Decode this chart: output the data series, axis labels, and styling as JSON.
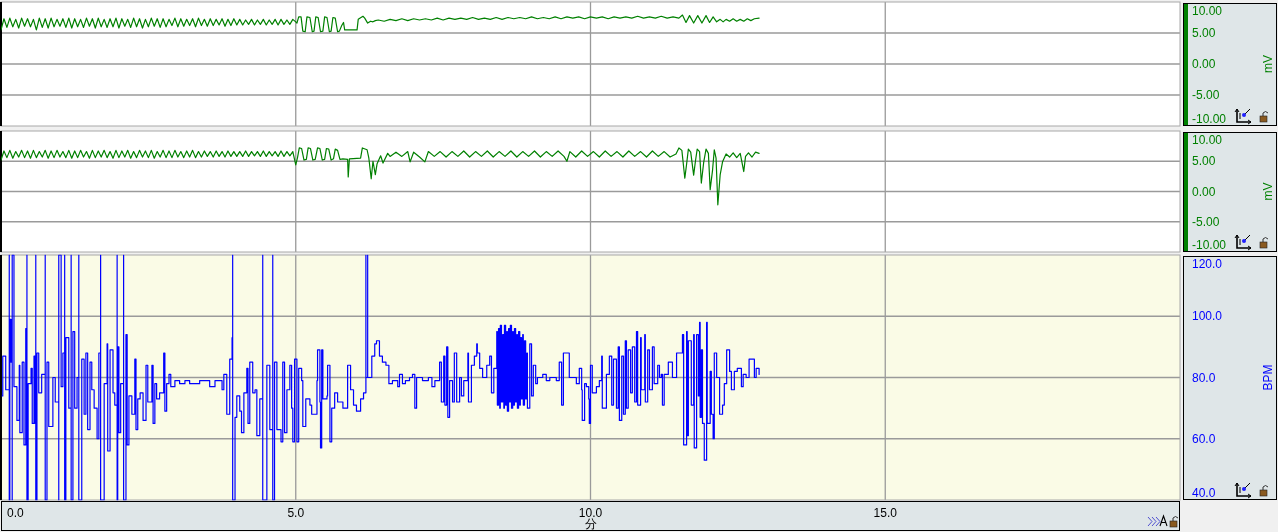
{
  "chart_data": [
    {
      "type": "line",
      "ylabel": "mV",
      "color": "#008000",
      "xlim": [
        0,
        20
      ],
      "ylim": [
        -10,
        10
      ],
      "grid": true,
      "tick_labels": "y",
      "xticks": [
        {
          "value": 0,
          "label": null
        },
        {
          "value": 5,
          "label": null
        },
        {
          "value": 10,
          "label": null
        },
        {
          "value": 15,
          "label": null
        }
      ],
      "yticks": [
        {
          "value": -10,
          "label": "-10.00"
        },
        {
          "value": -5,
          "label": "-5.00"
        },
        {
          "value": 0,
          "label": "0.00"
        },
        {
          "value": 5,
          "label": "5.00"
        },
        {
          "value": 10,
          "label": "10.00"
        }
      ],
      "x": [
        0,
        0.05,
        0.1,
        0.15,
        0.2,
        0.25,
        0.3,
        0.35,
        0.4,
        0.45,
        0.5,
        0.55,
        0.6,
        0.65,
        0.7,
        0.75,
        0.8,
        0.85,
        0.9,
        0.95,
        1,
        1.05,
        1.1,
        1.15,
        1.2,
        1.25,
        1.3,
        1.35,
        1.4,
        1.45,
        1.5,
        1.55,
        1.6,
        1.65,
        1.7,
        1.75,
        1.8,
        1.85,
        1.9,
        1.95,
        2,
        2.05,
        2.1,
        2.15,
        2.2,
        2.25,
        2.3,
        2.35,
        2.4,
        2.45,
        2.5,
        2.55,
        2.6,
        2.65,
        2.7,
        2.75,
        2.8,
        2.85,
        2.9,
        2.95,
        3,
        3.05,
        3.1,
        3.15,
        3.2,
        3.25,
        3.3,
        3.35,
        3.4,
        3.45,
        3.5,
        3.55,
        3.6,
        3.65,
        3.7,
        3.75,
        3.8,
        3.85,
        3.9,
        3.95,
        4,
        4.05,
        4.1,
        4.15,
        4.2,
        4.25,
        4.3,
        4.35,
        4.4,
        4.45,
        4.5,
        4.55,
        4.6,
        4.65,
        4.7,
        4.75,
        4.8,
        4.85,
        4.9,
        4.95,
        5,
        5.02,
        5.05,
        5.09,
        5.12,
        5.16,
        5.19,
        5.24,
        5.28,
        5.31,
        5.34,
        5.38,
        5.42,
        5.46,
        5.49,
        5.53,
        5.57,
        5.6,
        5.63,
        5.67,
        5.71,
        5.74,
        5.78,
        5.81,
        5.83,
        6.04,
        6.06,
        6.14,
        6.17,
        6.22,
        6.27,
        6.31,
        6.35,
        6.4,
        6.5,
        6.6,
        6.7,
        6.8,
        6.9,
        7,
        7.1,
        7.2,
        7.3,
        7.4,
        7.5,
        7.6,
        7.7,
        7.8,
        7.9,
        8,
        8.1,
        8.2,
        8.3,
        8.4,
        8.5,
        8.6,
        8.7,
        8.8,
        8.9,
        9,
        9.1,
        9.2,
        9.3,
        9.4,
        9.5,
        9.6,
        9.7,
        9.8,
        9.9,
        10,
        10.1,
        10.2,
        10.3,
        10.4,
        10.5,
        10.6,
        10.7,
        10.8,
        10.9,
        11,
        11.1,
        11.2,
        11.3,
        11.4,
        11.5,
        11.56,
        11.62,
        11.68,
        11.75,
        11.82,
        11.89,
        11.96,
        12.02,
        12.08,
        12.14,
        12.2,
        12.25,
        12.3,
        12.36,
        12.42,
        12.48,
        12.54,
        12.6,
        12.66,
        12.72,
        12.78,
        12.86
      ],
      "values": [
        5.5,
        7.3,
        5.9,
        7.4,
        6.0,
        7.2,
        5.8,
        7.4,
        6.1,
        7.3,
        6.0,
        7.2,
        5.5,
        7.4,
        5.9,
        7.3,
        5.8,
        7.4,
        6.0,
        7.2,
        6.1,
        7.3,
        5.9,
        7.4,
        5.8,
        7.3,
        6.0,
        7.2,
        5.9,
        7.4,
        6.1,
        7.3,
        5.8,
        7.4,
        6.0,
        7.2,
        5.9,
        7.3,
        6.0,
        7.4,
        5.8,
        7.3,
        6.1,
        7.2,
        5.9,
        7.4,
        6.0,
        7.3,
        5.8,
        7.2,
        6.0,
        7.4,
        6.1,
        7.3,
        5.9,
        7.3,
        6.0,
        7.2,
        6.2,
        7.4,
        6.0,
        7.3,
        6.1,
        7.2,
        6.2,
        7.3,
        6.0,
        7.4,
        6.2,
        7.2,
        6.1,
        7.3,
        6.2,
        7.2,
        6.3,
        7.3,
        6.1,
        7.2,
        6.2,
        7.3,
        6.3,
        7.2,
        6.3,
        7.1,
        6.4,
        7.2,
        6.3,
        7.1,
        6.4,
        7.2,
        6.3,
        7.1,
        6.4,
        7.2,
        6.3,
        7.2,
        6.4,
        7.1,
        6.4,
        7.2,
        6.8,
        6.6,
        7.6,
        7.6,
        5.3,
        5.2,
        7.6,
        7.5,
        5.2,
        5.3,
        7.6,
        7.5,
        5.2,
        5.3,
        7.6,
        7.5,
        5.2,
        5.3,
        7.5,
        7.4,
        5.2,
        5.3,
        6.2,
        6.7,
        5.5,
        5.5,
        7.2,
        7.7,
        7.4,
        6.6,
        6.9,
        6.8,
        7.0,
        7.1,
        6.9,
        7.2,
        7.0,
        7.3,
        7.0,
        7.3,
        7.1,
        7.3,
        7.1,
        7.4,
        7.1,
        7.4,
        7.2,
        7.4,
        7.2,
        7.5,
        7.2,
        7.4,
        7.2,
        7.5,
        7.2,
        7.5,
        7.3,
        7.5,
        7.3,
        7.6,
        7.3,
        7.5,
        7.3,
        7.6,
        7.3,
        7.6,
        7.4,
        7.6,
        7.3,
        7.6,
        7.4,
        7.6,
        7.3,
        7.6,
        7.4,
        7.6,
        7.4,
        7.7,
        7.4,
        7.6,
        7.4,
        7.7,
        7.4,
        7.6,
        7.4,
        7.9,
        6.7,
        7.8,
        6.6,
        7.8,
        6.6,
        7.8,
        6.7,
        7.6,
        6.8,
        7.2,
        6.8,
        7.2,
        6.9,
        7.3,
        6.9,
        7.2,
        6.9,
        7.3,
        7.0,
        7.3,
        7.4
      ]
    },
    {
      "type": "line",
      "ylabel": "mV",
      "color": "#008000",
      "xlim": [
        0,
        20
      ],
      "ylim": [
        -10,
        10
      ],
      "grid": true,
      "tick_labels": "y",
      "xticks": [
        {
          "value": 0,
          "label": null
        },
        {
          "value": 5,
          "label": null
        },
        {
          "value": 10,
          "label": null
        },
        {
          "value": 15,
          "label": null
        }
      ],
      "yticks": [
        {
          "value": -10,
          "label": "-10.00"
        },
        {
          "value": -5,
          "label": "-5.00"
        },
        {
          "value": 0,
          "label": "0.00"
        },
        {
          "value": 5,
          "label": "5.00"
        },
        {
          "value": 10,
          "label": "10.00"
        }
      ],
      "x": [
        0,
        0.05,
        0.1,
        0.15,
        0.2,
        0.25,
        0.3,
        0.35,
        0.4,
        0.45,
        0.5,
        0.55,
        0.6,
        0.65,
        0.7,
        0.75,
        0.8,
        0.85,
        0.9,
        0.95,
        1,
        1.05,
        1.1,
        1.15,
        1.2,
        1.25,
        1.3,
        1.35,
        1.4,
        1.45,
        1.5,
        1.55,
        1.6,
        1.65,
        1.7,
        1.75,
        1.8,
        1.85,
        1.9,
        1.95,
        2,
        2.05,
        2.1,
        2.15,
        2.2,
        2.25,
        2.3,
        2.35,
        2.4,
        2.45,
        2.5,
        2.55,
        2.6,
        2.65,
        2.7,
        2.75,
        2.8,
        2.85,
        2.9,
        2.95,
        3,
        3.05,
        3.1,
        3.15,
        3.2,
        3.25,
        3.3,
        3.35,
        3.4,
        3.45,
        3.5,
        3.55,
        3.6,
        3.65,
        3.7,
        3.75,
        3.8,
        3.85,
        3.9,
        3.95,
        4,
        4.05,
        4.1,
        4.15,
        4.2,
        4.25,
        4.3,
        4.35,
        4.4,
        4.45,
        4.5,
        4.55,
        4.6,
        4.65,
        4.7,
        4.75,
        4.8,
        4.85,
        4.9,
        4.95,
        5,
        5.03,
        5.06,
        5.1,
        5.14,
        5.18,
        5.21,
        5.25,
        5.29,
        5.33,
        5.37,
        5.41,
        5.45,
        5.49,
        5.52,
        5.56,
        5.6,
        5.64,
        5.67,
        5.71,
        5.75,
        5.8,
        5.88,
        5.89,
        5.91,
        6.1,
        6.13,
        6.21,
        6.24,
        6.28,
        6.31,
        6.35,
        6.38,
        6.44,
        6.48,
        6.56,
        6.6,
        6.7,
        6.8,
        6.9,
        6.94,
        7,
        7.1,
        7.19,
        7.25,
        7.35,
        7.45,
        7.55,
        7.65,
        7.75,
        7.85,
        7.95,
        8.05,
        8.15,
        8.25,
        8.35,
        8.45,
        8.55,
        8.65,
        8.75,
        8.85,
        8.95,
        9.05,
        9.15,
        9.25,
        9.35,
        9.45,
        9.55,
        9.6,
        9.65,
        9.75,
        9.85,
        9.95,
        10.05,
        10.15,
        10.25,
        10.35,
        10.45,
        10.55,
        10.65,
        10.75,
        10.85,
        10.95,
        11.05,
        11.15,
        11.25,
        11.35,
        11.45,
        11.5,
        11.55,
        11.6,
        11.63,
        11.66,
        11.7,
        11.75,
        11.78,
        11.81,
        11.85,
        11.88,
        11.92,
        11.96,
        12,
        12.03,
        12.07,
        12.1,
        12.13,
        12.16,
        12.2,
        12.24,
        12.3,
        12.36,
        12.42,
        12.48,
        12.54,
        12.6,
        12.63,
        12.68,
        12.74,
        12.8,
        12.86
      ],
      "values": [
        5.2,
        6.7,
        5.6,
        6.8,
        5.5,
        6.6,
        5.7,
        6.8,
        5.6,
        6.7,
        5.5,
        6.8,
        5.6,
        6.6,
        5.7,
        6.8,
        5.5,
        6.7,
        5.6,
        6.8,
        5.7,
        6.6,
        5.6,
        6.8,
        5.5,
        6.7,
        5.6,
        6.8,
        5.7,
        6.6,
        5.5,
        6.8,
        5.6,
        6.7,
        5.7,
        6.8,
        5.6,
        6.6,
        5.5,
        6.8,
        5.6,
        6.7,
        5.7,
        6.8,
        5.5,
        6.6,
        5.6,
        6.8,
        5.7,
        6.7,
        5.6,
        6.8,
        5.5,
        6.6,
        5.7,
        6.8,
        5.6,
        6.7,
        5.6,
        6.8,
        5.7,
        6.6,
        5.6,
        6.7,
        5.7,
        6.8,
        5.6,
        6.6,
        5.7,
        6.7,
        5.8,
        6.6,
        5.7,
        6.7,
        5.8,
        6.6,
        5.7,
        6.7,
        5.8,
        6.6,
        5.8,
        6.6,
        5.8,
        6.7,
        5.8,
        6.6,
        5.9,
        6.6,
        5.8,
        6.7,
        5.8,
        6.6,
        5.9,
        6.6,
        5.8,
        6.7,
        5.8,
        6.6,
        5.9,
        6.6,
        4.4,
        5.6,
        7.2,
        7.1,
        5.2,
        5.3,
        7.2,
        7.1,
        5.2,
        5.3,
        7.2,
        7.1,
        5.2,
        5.3,
        7.1,
        7.0,
        5.2,
        5.4,
        7.0,
        6.8,
        5.3,
        5.4,
        5.3,
        2.4,
        5.4,
        5.5,
        7.2,
        6.9,
        5.5,
        2.1,
        5.0,
        2.8,
        4.6,
        5.9,
        4.7,
        6.3,
        5.8,
        6.5,
        5.8,
        6.6,
        4.9,
        6.5,
        5.7,
        4.9,
        6.6,
        5.8,
        6.6,
        5.7,
        6.6,
        5.8,
        6.7,
        5.7,
        6.6,
        5.8,
        6.7,
        5.7,
        6.6,
        5.8,
        6.7,
        5.7,
        6.6,
        5.8,
        6.7,
        5.7,
        6.6,
        5.8,
        6.7,
        5.8,
        5.0,
        6.6,
        5.7,
        6.7,
        5.8,
        6.6,
        5.7,
        6.7,
        5.8,
        6.6,
        5.7,
        6.7,
        5.8,
        6.6,
        5.7,
        6.7,
        5.8,
        6.6,
        5.7,
        6.2,
        7.2,
        6.8,
        2.2,
        4.5,
        7.0,
        6.5,
        2.7,
        5.0,
        7.0,
        6.6,
        1.4,
        4.8,
        7.0,
        6.3,
        0.3,
        3.5,
        6.9,
        5.5,
        -2.2,
        2.8,
        4.9,
        6.2,
        5.7,
        6.4,
        5.6,
        6.3,
        3.3,
        5.8,
        6.4,
        5.7,
        6.5,
        6.3
      ]
    },
    {
      "type": "step",
      "xlabel": "分",
      "ylabel": "BPM",
      "color": "#0000ff",
      "xlim": [
        0,
        20
      ],
      "ylim": [
        40,
        120
      ],
      "grid": true,
      "xticks": [
        {
          "value": 0,
          "label": "0.0"
        },
        {
          "value": 5,
          "label": "5.0"
        },
        {
          "value": 10,
          "label": "10.0"
        },
        {
          "value": 15,
          "label": "15.0"
        }
      ],
      "yticks": [
        {
          "value": 40,
          "label": "40.0"
        },
        {
          "value": 60,
          "label": "60.0"
        },
        {
          "value": 80,
          "label": "80.0"
        },
        {
          "value": 100,
          "label": "100.0"
        },
        {
          "value": 120,
          "label": "120.0"
        }
      ],
      "x": [
        0.02,
        0.03,
        0.08,
        0.14,
        0.14,
        0.15,
        0.17,
        0.19,
        0.19,
        0.22,
        0.27,
        0.31,
        0.32,
        0.36,
        0.39,
        0.42,
        0.44,
        0.44,
        0.46,
        0.51,
        0.53,
        0.56,
        0.58,
        0.59,
        0.59,
        0.61,
        0.64,
        0.69,
        0.75,
        0.75,
        0.78,
        0.81,
        0.88,
        0.92,
        0.98,
        0.98,
        1.02,
        1.05,
        1.08,
        1.08,
        1.1,
        1.15,
        1.19,
        1.19,
        1.22,
        1.25,
        1.29,
        1.32,
        1.32,
        1.37,
        1.41,
        1.44,
        1.47,
        1.51,
        1.54,
        1.58,
        1.63,
        1.66,
        1.69,
        1.69,
        1.75,
        1.8,
        1.81,
        1.85,
        1.9,
        1.93,
        1.97,
        1.97,
        1.98,
        2,
        2.03,
        2.08,
        2.08,
        2.12,
        2.14,
        2.17,
        2.22,
        2.27,
        2.29,
        2.32,
        2.36,
        2.41,
        2.46,
        2.49,
        2.56,
        2.58,
        2.61,
        2.64,
        2.69,
        2.76,
        2.78,
        2.81,
        2.85,
        2.88,
        2.95,
        3.03,
        3.12,
        3.2,
        3.29,
        3.37,
        3.46,
        3.54,
        3.63,
        3.68,
        3.75,
        3.78,
        3.83,
        3.88,
        3.92,
        3.93,
        3.93,
        3.97,
        4,
        4.05,
        4.08,
        4.12,
        4.17,
        4.19,
        4.22,
        4.27,
        4.31,
        4.34,
        4.39,
        4.44,
        4.44,
        4.51,
        4.56,
        4.61,
        4.61,
        4.64,
        4.68,
        4.75,
        4.78,
        4.81,
        4.85,
        4.9,
        4.93,
        4.95,
        4.98,
        5.02,
        5.05,
        5.1,
        5.12,
        5.17,
        5.24,
        5.27,
        5.36,
        5.37,
        5.41,
        5.42,
        5.44,
        5.46,
        5.53,
        5.54,
        5.58,
        5.61,
        5.66,
        5.71,
        5.8,
        5.88,
        5.93,
        5.98,
        6.03,
        6.1,
        6.15,
        6.19,
        6.19,
        6.22,
        6.22,
        6.29,
        6.34,
        6.37,
        6.42,
        6.47,
        6.53,
        6.58,
        6.64,
        6.73,
        6.76,
        6.81,
        6.86,
        6.93,
        6.98,
        7.02,
        7.05,
        7.15,
        7.25,
        7.31,
        7.36,
        7.44,
        7.47,
        7.51,
        7.53,
        7.56,
        7.58,
        7.61,
        7.66,
        7.69,
        7.73,
        7.78,
        7.81,
        7.85,
        7.92,
        7.93,
        7.98,
        8.03,
        8.07,
        8.08,
        8.12,
        8.17,
        8.24,
        8.29,
        8.32,
        8.36,
        8.41,
        8.42,
        8.44,
        8.46,
        8.47,
        8.49,
        8.51,
        8.53,
        8.54,
        8.56,
        8.58,
        8.59,
        8.61,
        8.63,
        8.64,
        8.66,
        8.68,
        8.69,
        8.71,
        8.73,
        8.75,
        8.76,
        8.78,
        8.8,
        8.81,
        8.83,
        8.85,
        8.86,
        8.88,
        8.9,
        8.92,
        8.93,
        8.97,
        9,
        9.03,
        9.07,
        9.1,
        9.19,
        9.25,
        9.31,
        9.42,
        9.47,
        9.51,
        9.54,
        9.64,
        9.76,
        9.81,
        9.85,
        9.86,
        9.9,
        9.93,
        9.97,
        9.98,
        10,
        10.03,
        10.1,
        10.15,
        10.19,
        10.2,
        10.27,
        10.32,
        10.36,
        10.39,
        10.44,
        10.47,
        10.49,
        10.53,
        10.56,
        10.59,
        10.61,
        10.64,
        10.68,
        10.71,
        10.75,
        10.78,
        10.8,
        10.85,
        10.86,
        10.92,
        10.93,
        10.97,
        11,
        11.05,
        11.08,
        11.14,
        11.17,
        11.2,
        11.22,
        11.25,
        11.32,
        11.39,
        11.46,
        11.56,
        11.58,
        11.63,
        11.64,
        11.66,
        11.71,
        11.75,
        11.76,
        11.8,
        11.83,
        11.85,
        11.86,
        11.88,
        11.9,
        11.93,
        11.97,
        11.98,
        12.03,
        12.05,
        12.08,
        12.1,
        12.14,
        12.19,
        12.24,
        12.27,
        12.31,
        12.36,
        12.39,
        12.44,
        12.49,
        12.56,
        12.59,
        12.64,
        12.69,
        12.75,
        12.78,
        12.81,
        12.86
      ],
      "values": [
        74,
        87,
        76,
        120,
        40,
        99,
        85,
        40,
        120,
        77,
        66,
        84,
        62,
        85,
        58,
        96,
        120,
        40,
        78,
        83,
        65,
        87,
        65,
        120,
        40,
        88,
        75,
        81,
        120,
        40,
        85,
        64,
        80,
        72,
        40,
        120,
        77,
        88,
        120,
        40,
        93,
        70,
        120,
        40,
        95,
        70,
        80,
        120,
        40,
        86,
        68,
        88,
        63,
        85,
        76,
        70,
        60,
        88,
        120,
        40,
        78,
        91,
        56,
        89,
        75,
        71,
        120,
        40,
        90,
        62,
        78,
        120,
        40,
        94,
        58,
        74,
        68,
        86,
        63,
        73,
        75,
        66,
        84,
        72,
        84,
        65,
        78,
        73,
        75,
        88,
        69,
        78,
        81,
        77,
        79,
        78,
        79,
        78,
        78,
        79,
        79,
        77,
        79,
        79,
        76,
        81,
        68,
        86,
        93,
        120,
        40,
        67,
        74,
        69,
        62,
        75,
        83,
        65,
        85,
        75,
        76,
        61,
        73,
        120,
        40,
        84,
        63,
        120,
        40,
        85,
        63,
        59,
        85,
        62,
        76,
        84,
        70,
        59,
        86,
        59,
        83,
        79,
        64,
        73,
        71,
        68,
        79,
        89,
        72,
        57,
        89,
        73,
        74,
        84,
        59,
        70,
        75,
        72,
        70,
        84,
        76,
        71,
        69,
        73,
        75,
        120,
        80,
        120,
        80,
        87,
        91,
        92,
        87,
        85,
        84,
        78,
        79,
        77,
        81,
        78,
        79,
        80,
        81,
        70,
        80,
        79,
        80,
        77,
        79,
        85,
        72,
        87,
        71,
        90,
        67,
        79,
        72,
        88,
        72,
        80,
        74,
        79,
        88,
        72,
        84,
        87,
        91,
        88,
        83,
        80,
        84,
        87,
        75,
        83,
        95,
        71,
        96,
        70,
        97,
        72,
        94,
        70,
        97,
        71,
        95,
        69,
        96,
        72,
        97,
        70,
        95,
        71,
        96,
        72,
        94,
        70,
        95,
        71,
        93,
        73,
        94,
        71,
        92,
        73,
        88,
        70,
        91,
        74,
        84,
        78,
        80,
        81,
        79,
        80,
        79,
        85,
        71,
        88,
        80,
        78,
        83,
        76,
        66,
        78,
        77,
        73,
        65,
        84,
        75,
        77,
        79,
        87,
        70,
        81,
        87,
        71,
        86,
        70,
        90,
        66,
        87,
        68,
        92,
        70,
        89,
        75,
        90,
        72,
        95,
        71,
        93,
        76,
        94,
        72,
        89,
        76,
        90,
        78,
        84,
        80,
        81,
        71,
        81,
        85,
        80,
        88,
        94,
        58,
        95,
        61,
        92,
        71,
        94,
        57,
        94,
        74,
        98,
        67,
        89,
        65,
        53,
        98,
        65,
        82,
        68,
        60,
        88,
        80,
        68,
        71,
        78,
        89,
        82,
        76,
        82,
        83,
        77,
        81,
        80,
        86,
        86,
        80,
        83,
        81
      ]
    }
  ]
}
